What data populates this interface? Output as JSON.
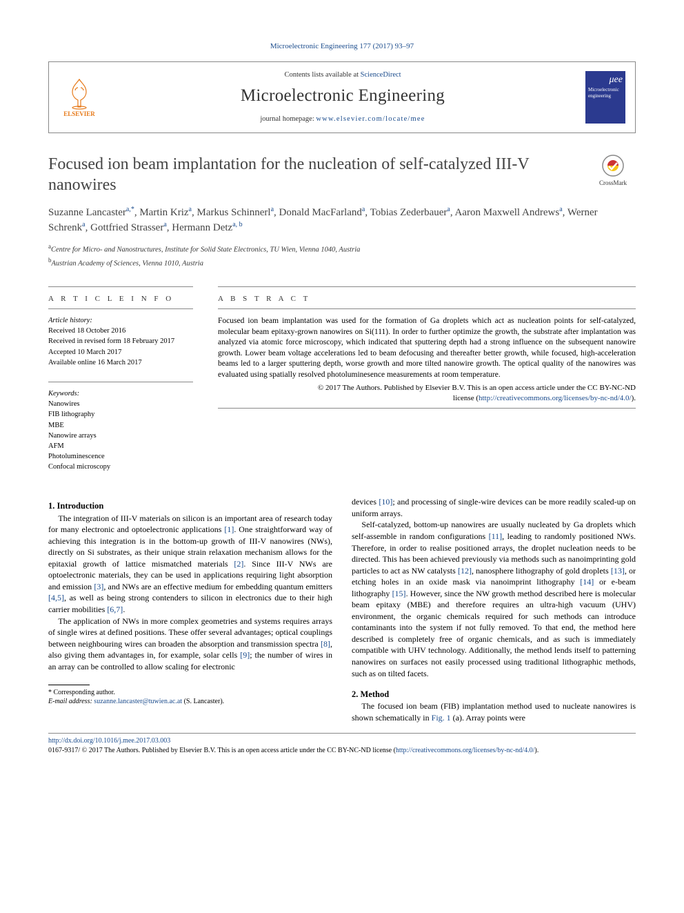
{
  "journal": {
    "ref_prefix": "Microelectronic Engineering 177 (2017) 93–97",
    "contents_line_prefix": "Contents lists available at ",
    "contents_line_link": "ScienceDirect",
    "name": "Microelectronic Engineering",
    "homepage_label": "journal homepage: ",
    "homepage_url": "www.elsevier.com/locate/mee",
    "elsevier_label": "ELSEVIER",
    "cover_mu": "μee",
    "cover_line1": "Microelectronic",
    "cover_line2": "engineering"
  },
  "crossmark_label": "CrossMark",
  "title": "Focused ion beam implantation for the nucleation of self-catalyzed III-V nanowires",
  "authors": [
    {
      "name": "Suzanne Lancaster",
      "marks": "a,*"
    },
    {
      "name": "Martin Kriz",
      "marks": "a"
    },
    {
      "name": "Markus Schinnerl",
      "marks": "a"
    },
    {
      "name": "Donald MacFarland",
      "marks": "a"
    },
    {
      "name": "Tobias Zederbauer",
      "marks": "a"
    },
    {
      "name": "Aaron Maxwell Andrews",
      "marks": "a"
    },
    {
      "name": "Werner Schrenk",
      "marks": "a"
    },
    {
      "name": "Gottfried Strasser",
      "marks": "a"
    },
    {
      "name": "Hermann Detz",
      "marks": "a, b"
    }
  ],
  "affiliations": {
    "a": "Centre for Micro- and Nanostructures, Institute for Solid State Electronics, TU Wien, Vienna 1040, Austria",
    "b": "Austrian Academy of Sciences, Vienna 1010, Austria"
  },
  "info_label": "A R T I C L E   I N F O",
  "abstract_label": "A B S T R A C T",
  "history": {
    "label": "Article history:",
    "received": "Received 18 October 2016",
    "revised": "Received in revised form 18 February 2017",
    "accepted": "Accepted 10 March 2017",
    "online": "Available online 16 March 2017"
  },
  "keywords_label": "Keywords:",
  "keywords": [
    "Nanowires",
    "FIB lithography",
    "MBE",
    "Nanowire arrays",
    "AFM",
    "Photoluminescence",
    "Confocal microscopy"
  ],
  "abstract": "Focused ion beam implantation was used for the formation of Ga droplets which act as nucleation points for self-catalyzed, molecular beam epitaxy-grown nanowires on Si(111). In order to further optimize the growth, the substrate after implantation was analyzed via atomic force microscopy, which indicated that sputtering depth had a strong influence on the subsequent nanowire growth. Lower beam voltage accelerations led to beam defocusing and thereafter better growth, while focused, high-acceleration beams led to a larger sputtering depth, worse growth and more tilted nanowire growth. The optical quality of the nanowires was evaluated using spatially resolved photoluminesence measurements at room temperature.",
  "abs_copyright_line1": "© 2017 The Authors. Published by Elsevier B.V. This is an open access article under the CC BY-NC-ND",
  "abs_copyright_line2_prefix": "license (",
  "abs_copyright_url": "http://creativecommons.org/licenses/by-nc-nd/4.0/",
  "abs_copyright_line2_suffix": ").",
  "sections": {
    "intro_heading": "1. Introduction",
    "intro_p1": "The integration of III-V materials on silicon is an important area of research today for many electronic and optoelectronic applications [1]. One straightforward way of achieving this integration is in the bottom-up growth of III-V nanowires (NWs), directly on Si substrates, as their unique strain relaxation mechanism allows for the epitaxial growth of lattice mismatched materials [2]. Since III-V NWs are optoelectronic materials, they can be used in applications requiring light absorption and emission [3], and NWs are an effective medium for embedding quantum emitters [4,5], as well as being strong contenders to silicon in electronics due to their high carrier mobilities [6,7].",
    "intro_p2": "The application of NWs in more complex geometries and systems requires arrays of single wires at defined positions. These offer several advantages; optical couplings between neighbouring wires can broaden the absorption and transmission spectra [8], also giving them advantages in, for example, solar cells [9]; the number of wires in an array can be controlled to allow scaling for electronic",
    "intro_p2b": "devices [10]; and processing of single-wire devices can be more readily scaled-up on uniform arrays.",
    "intro_p3": "Self-catalyzed, bottom-up nanowires are usually nucleated by Ga droplets which self-assemble in random configurations [11], leading to randomly positioned NWs. Therefore, in order to realise positioned arrays, the droplet nucleation needs to be directed. This has been achieved previously via methods such as nanoimprinting gold particles to act as NW catalysts [12], nanosphere lithography of gold droplets [13], or etching holes in an oxide mask via nanoimprint lithography [14] or e-beam lithography [15]. However, since the NW growth method described here is molecular beam epitaxy (MBE) and therefore requires an ultra-high vacuum (UHV) environment, the organic chemicals required for such methods can introduce contaminants into the system if not fully removed. To that end, the method here described is completely free of organic chemicals, and as such is immediately compatible with UHV technology. Additionally, the method lends itself to patterning nanowires on surfaces not easily processed using traditional lithographic methods, such as on tilted facets.",
    "method_heading": "2. Method",
    "method_p1": "The focused ion beam (FIB) implantation method used to nucleate nanowires is shown schematically in Fig. 1 (a). Array points were"
  },
  "footnote": {
    "corr_label": "* Corresponding author.",
    "email_label": "E-mail address: ",
    "email": "suzanne.lancaster@tuwien.ac.at",
    "email_name": "(S. Lancaster)."
  },
  "doi": {
    "url": "http://dx.doi.org/10.1016/j.mee.2017.03.003",
    "issn_line": "0167-9317/ © 2017 The Authors. Published by Elsevier B.V. This is an open access article under the CC BY-NC-ND license (",
    "license_url": "http://creativecommons.org/licenses/by-nc-nd/4.0/",
    "issn_suffix": ")."
  },
  "colors": {
    "link": "#1a4b8c",
    "elsevier_orange": "#e67817",
    "cover_blue": "#2b3a8f"
  }
}
